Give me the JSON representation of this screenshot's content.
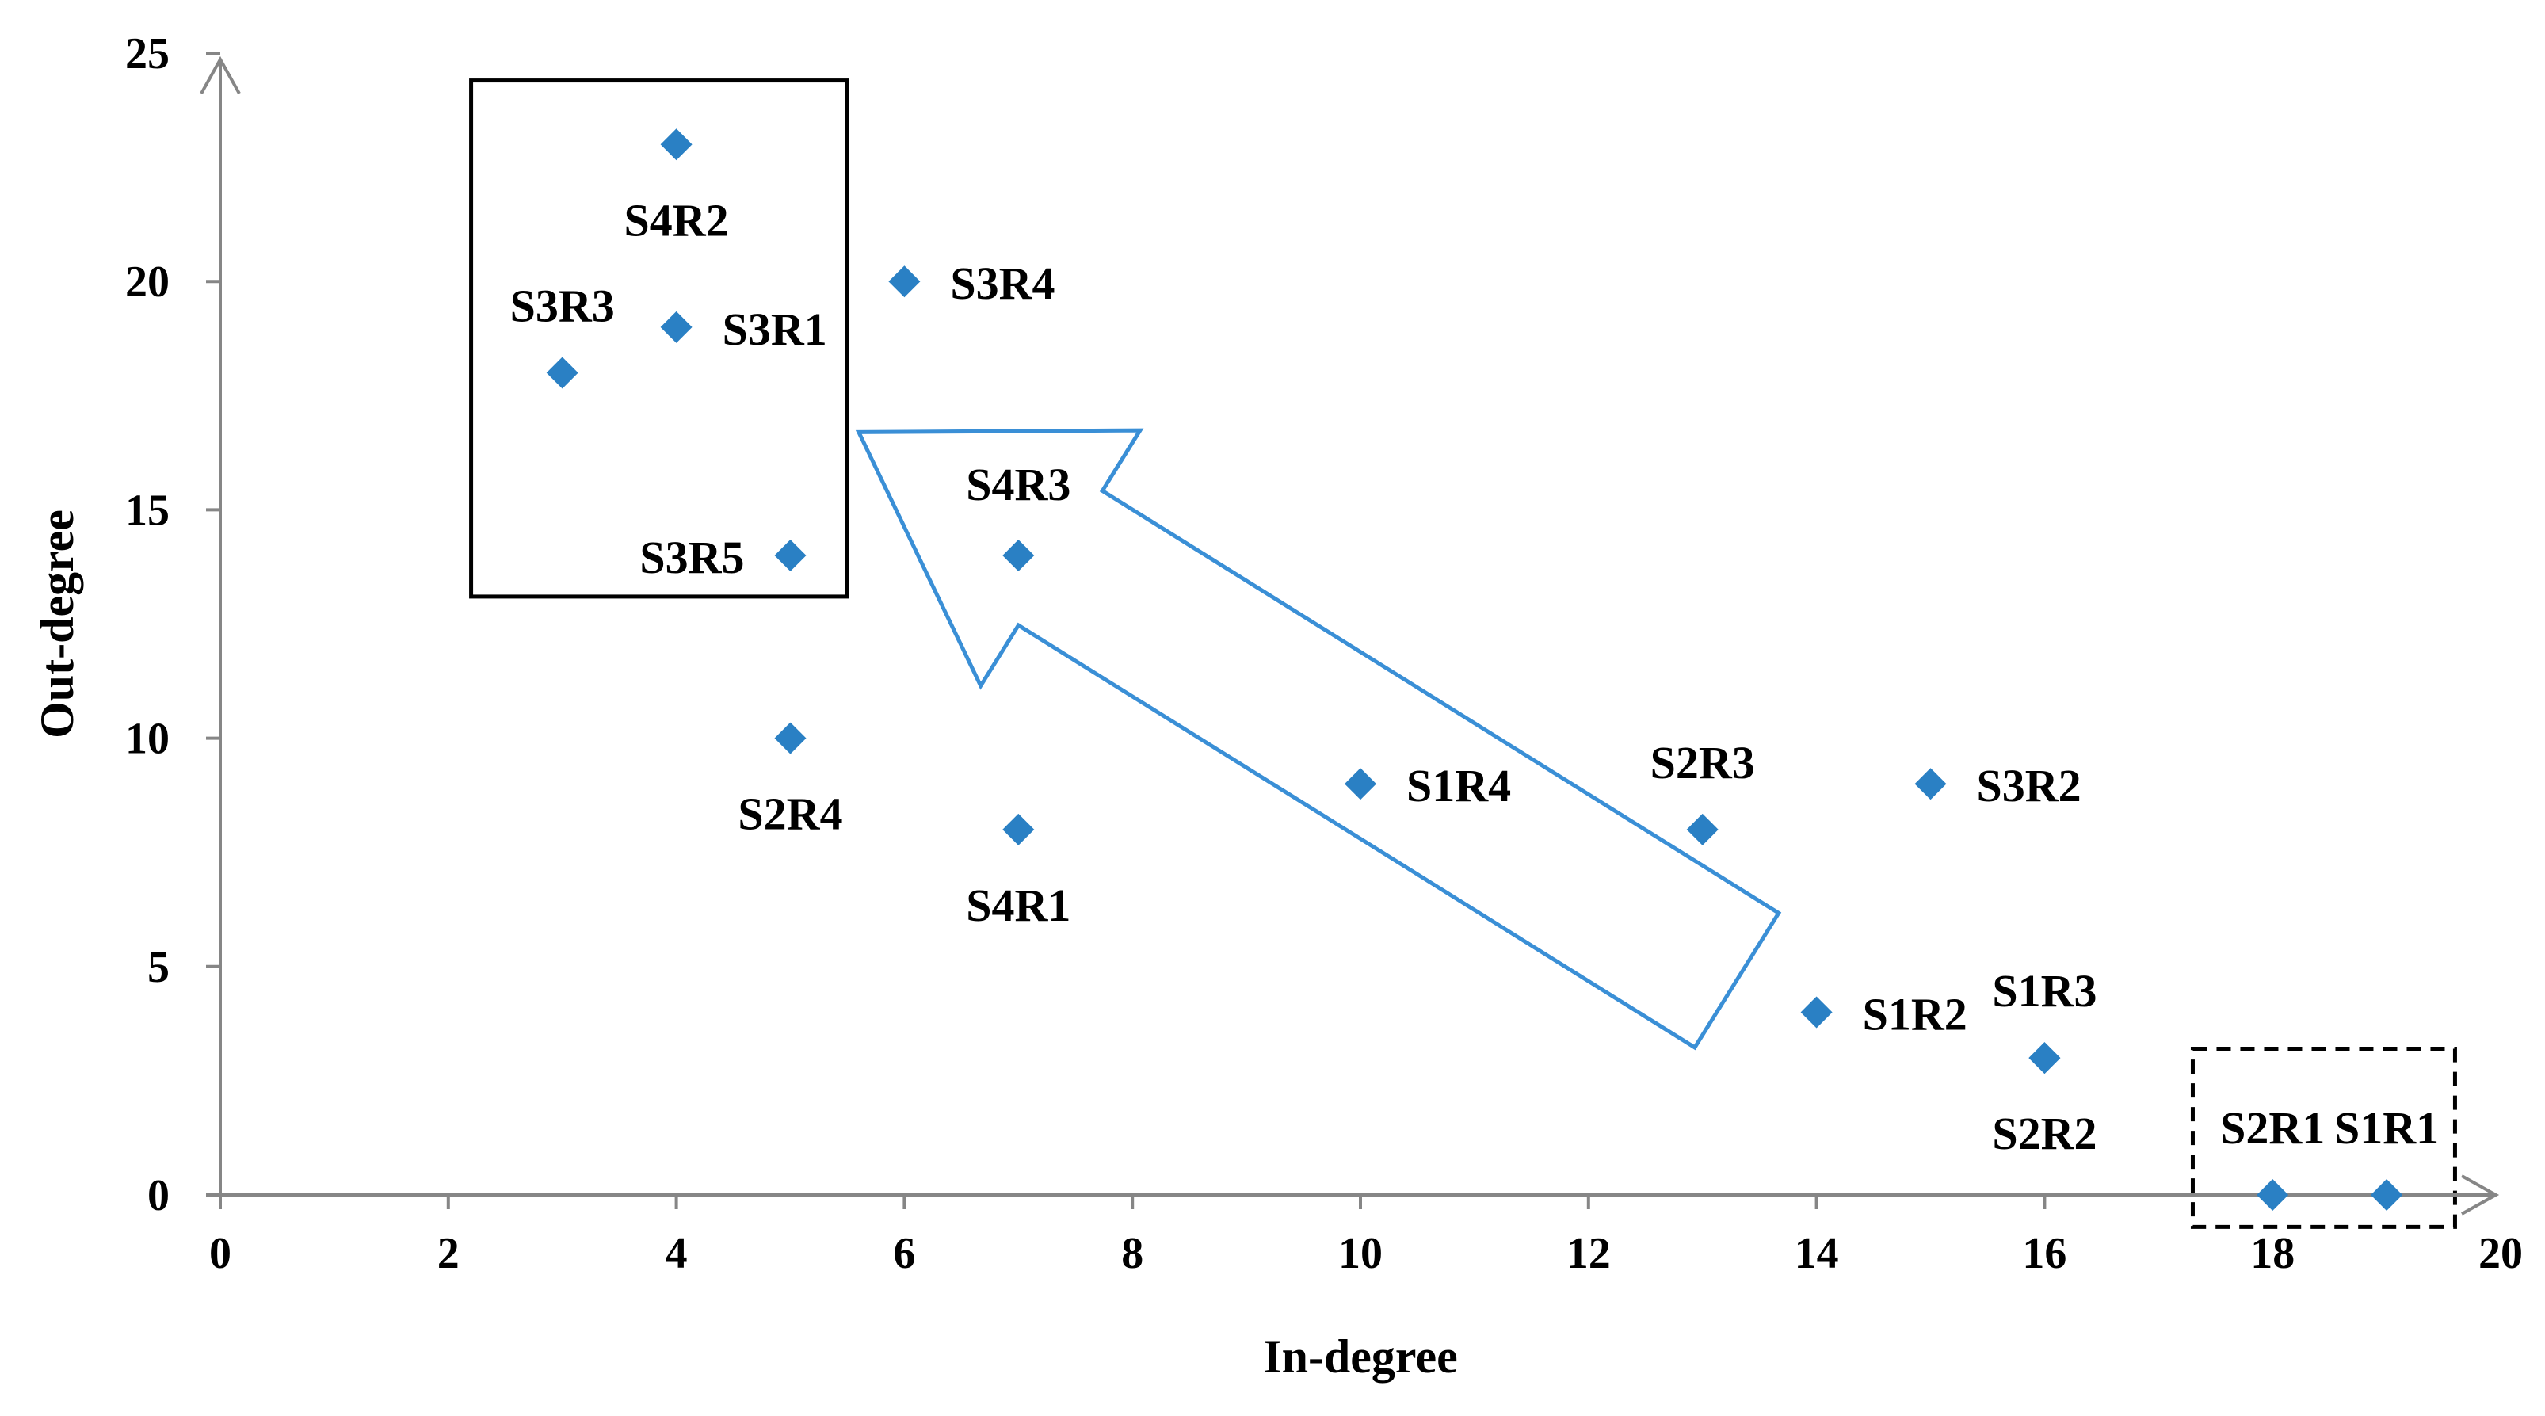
{
  "chart_data": {
    "type": "scatter",
    "title": "",
    "xlabel": "In-degree",
    "ylabel": "Out-degree",
    "xlim": [
      0,
      20
    ],
    "ylim": [
      0,
      25
    ],
    "xticks": [
      "0",
      "2",
      "4",
      "6",
      "8",
      "10",
      "12",
      "14",
      "16",
      "18",
      "20"
    ],
    "yticks": [
      "0",
      "5",
      "10",
      "15",
      "20",
      "25"
    ],
    "grid": false,
    "marker_color": "#2a80c4",
    "annotation_color": "#3a8fd6",
    "points": [
      {
        "label": "S4R2",
        "x": 4,
        "y": 23
      },
      {
        "label": "S3R4",
        "x": 6,
        "y": 20
      },
      {
        "label": "S3R1",
        "x": 4,
        "y": 19
      },
      {
        "label": "S3R3",
        "x": 3,
        "y": 18
      },
      {
        "label": "S3R5",
        "x": 5,
        "y": 14
      },
      {
        "label": "S4R3",
        "x": 7,
        "y": 14
      },
      {
        "label": "S2R4",
        "x": 5,
        "y": 10
      },
      {
        "label": "S1R4",
        "x": 10,
        "y": 9
      },
      {
        "label": "S3R2",
        "x": 15,
        "y": 9
      },
      {
        "label": "S4R1",
        "x": 7,
        "y": 8
      },
      {
        "label": "S2R3",
        "x": 13,
        "y": 8
      },
      {
        "label": "S1R2",
        "x": 14,
        "y": 4
      },
      {
        "label": "S1R3",
        "x": 16,
        "y": 3
      },
      {
        "label": "S2R2",
        "x": 16,
        "y": 3
      },
      {
        "label": "S2R1",
        "x": 18,
        "y": 0
      },
      {
        "label": "S1R1",
        "x": 19,
        "y": 0
      }
    ],
    "annotations": {
      "solid_box": {
        "x_range": [
          2.2,
          5.5
        ],
        "y_range": [
          13.1,
          24.4
        ]
      },
      "dashed_box": {
        "x_range": [
          17.3,
          19.6
        ],
        "y_range": [
          -0.7,
          3.2
        ]
      },
      "arrow": {
        "from": [
          13.3,
          4.7
        ],
        "to": [
          5.6,
          16.7
        ]
      }
    }
  }
}
